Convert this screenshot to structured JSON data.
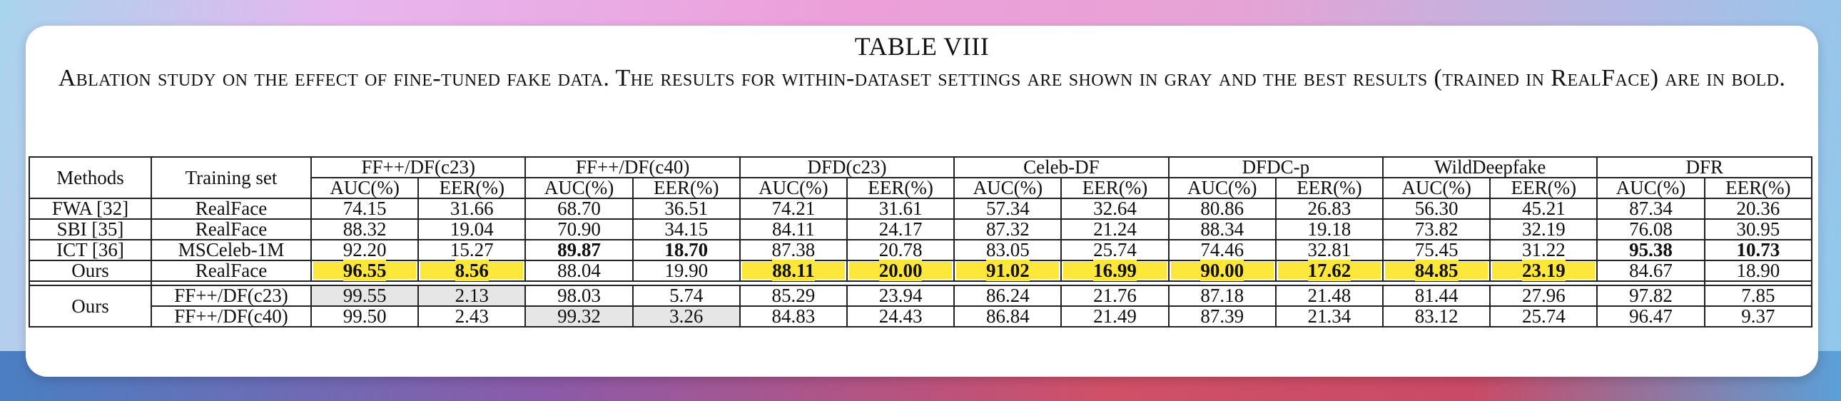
{
  "table_title": "TABLE VIII",
  "caption": "Ablation study on the effect of fine-tuned fake data. The results for within-dataset settings are shown in gray and the best results (trained in RealFace) are in bold.",
  "header": {
    "methods": "Methods",
    "training_set": "Training set",
    "datasets": [
      "FF++/DF(c23)",
      "FF++/DF(c40)",
      "DFD(c23)",
      "Celeb-DF",
      "DFDC-p",
      "WildDeepfake",
      "DFR"
    ],
    "metrics": [
      "AUC(%)",
      "EER(%)"
    ]
  },
  "rows_top": [
    {
      "method": "FWA [32]",
      "train": "RealFace",
      "values": [
        "74.15",
        "31.66",
        "68.70",
        "36.51",
        "74.21",
        "31.61",
        "57.34",
        "32.64",
        "80.86",
        "26.83",
        "56.30",
        "45.21",
        "87.34",
        "20.36"
      ]
    },
    {
      "method": "SBI [35]",
      "train": "RealFace",
      "values": [
        "88.32",
        "19.04",
        "70.90",
        "34.15",
        "84.11",
        "24.17",
        "87.32",
        "21.24",
        "88.34",
        "19.18",
        "73.82",
        "32.19",
        "76.08",
        "30.95"
      ]
    },
    {
      "method": "ICT [36]",
      "train": "MSCeleb-1M",
      "values": [
        "92.20",
        "15.27",
        "89.87",
        "18.70",
        "87.38",
        "20.78",
        "83.05",
        "25.74",
        "74.46",
        "32.81",
        "75.45",
        "31.22",
        "95.38",
        "10.73"
      ]
    },
    {
      "method": "Ours",
      "train": "RealFace",
      "values": [
        "96.55",
        "8.56",
        "88.04",
        "19.90",
        "88.11",
        "20.00",
        "91.02",
        "16.99",
        "90.00",
        "17.62",
        "84.85",
        "23.19",
        "84.67",
        "18.90"
      ]
    }
  ],
  "rows_bottom": {
    "method": "Ours",
    "rows": [
      {
        "train": "FF++/DF(c23)",
        "values": [
          "99.55",
          "2.13",
          "98.03",
          "5.74",
          "85.29",
          "23.94",
          "86.24",
          "21.76",
          "87.18",
          "21.48",
          "81.44",
          "27.96",
          "97.82",
          "7.85"
        ]
      },
      {
        "train": "FF++/DF(c40)",
        "values": [
          "99.50",
          "2.43",
          "99.32",
          "3.26",
          "84.83",
          "24.43",
          "86.84",
          "21.49",
          "87.39",
          "21.34",
          "83.12",
          "25.74",
          "96.47",
          "9.37"
        ]
      }
    ]
  },
  "colors": {
    "highlight": "#fde73a",
    "gray_cell": "#e6e6e6"
  }
}
